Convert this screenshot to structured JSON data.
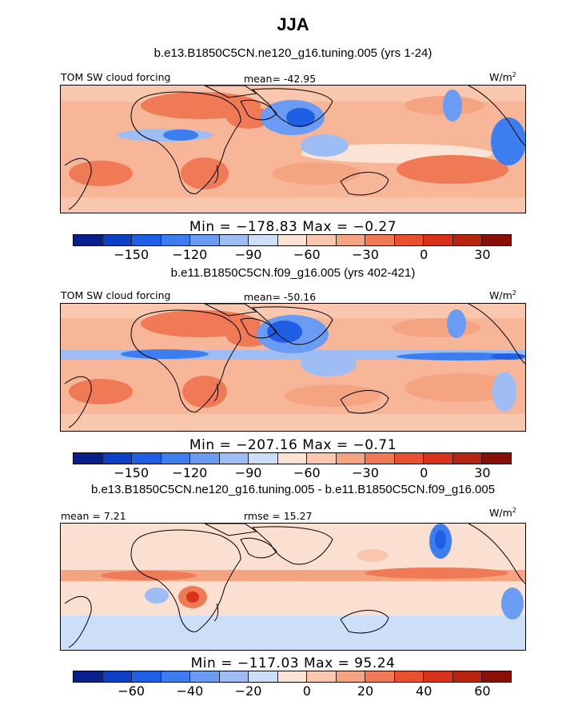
{
  "title": "JJA",
  "panels": [
    {
      "case": "b.e13.B1850C5CN.ne120_g16.tuning.005 (yrs 1-24)",
      "left_label": "TOM SW cloud forcing",
      "center_label": "mean=  -42.95",
      "units": "W/m",
      "units_sup": "2",
      "minmax": "Min = −178.83 Max =  −0.27",
      "colorbar_ticks": [
        "−150",
        "−120",
        "−90",
        "−60",
        "−30",
        "0",
        "30"
      ]
    },
    {
      "case": "b.e11.B1850C5CN.f09_g16.005 (yrs 402-421)",
      "left_label": "TOM SW cloud forcing",
      "center_label": "mean=  -50.16",
      "units": "W/m",
      "units_sup": "2",
      "minmax": "Min = −207.16 Max =  −0.71",
      "colorbar_ticks": [
        "−150",
        "−120",
        "−90",
        "−60",
        "−30",
        "0",
        "30"
      ]
    },
    {
      "case": "b.e13.B1850C5CN.ne120_g16.tuning.005 - b.e11.B1850C5CN.f09_g16.005",
      "left_label": "mean =    7.21",
      "center_label": "rmse =   15.27",
      "units": "W/m",
      "units_sup": "2",
      "minmax": "Min = −117.03 Max =  95.24",
      "colorbar_ticks": [
        "−60",
        "−40",
        "−20",
        "0",
        "20",
        "40",
        "60"
      ]
    }
  ],
  "colorbar_colors": [
    "#0b1f8a",
    "#0d3fc4",
    "#1f5fe6",
    "#3c7ef0",
    "#6a9cf3",
    "#9ebdf5",
    "#cddff8",
    "#fbe4d6",
    "#f9c7ad",
    "#f5a482",
    "#ef7a55",
    "#e9502d",
    "#d8321a",
    "#b6230f",
    "#8a0f08"
  ],
  "colors": {
    "ocean_base": "#f6b697",
    "land_base": "#f4ad8b",
    "diff_base": "#fbe0d1",
    "coast": "#000000"
  }
}
